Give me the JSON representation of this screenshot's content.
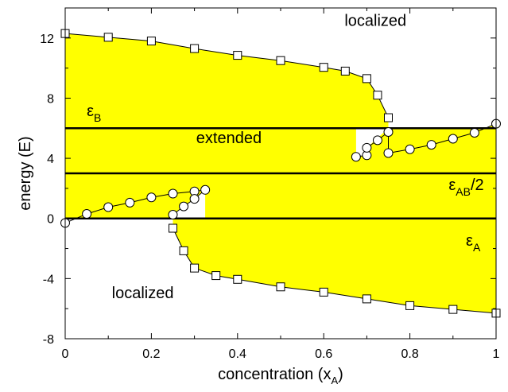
{
  "chart_data": {
    "type": "line",
    "xlabel": "concentration (x_A)",
    "ylabel": "energy (E)",
    "xlim": [
      0,
      1
    ],
    "ylim": [
      -8,
      14
    ],
    "xticks": [
      0,
      0.2,
      0.4,
      0.6,
      0.8,
      1
    ],
    "xtick_labels": [
      "0",
      "0.2",
      "0.4",
      "0.6",
      "0.8",
      "1"
    ],
    "yticks": [
      -8,
      -4,
      0,
      4,
      8,
      12
    ],
    "ytick_labels": [
      "-8",
      "-4",
      "0",
      "4",
      "8",
      "12"
    ],
    "grid": false,
    "fill_color": "#ffff00",
    "series": [
      {
        "marker": "square",
        "points": [
          [
            0,
            12.3
          ],
          [
            0.1,
            12.05
          ],
          [
            0.2,
            11.8
          ],
          [
            0.3,
            11.3
          ],
          [
            0.4,
            10.85
          ],
          [
            0.5,
            10.5
          ],
          [
            0.6,
            10.05
          ],
          [
            0.65,
            9.8
          ],
          [
            0.7,
            9.3
          ],
          [
            0.725,
            8.2
          ],
          [
            0.75,
            6.7
          ]
        ]
      },
      {
        "marker": "circle",
        "points": [
          [
            0.675,
            4.1
          ],
          [
            0.7,
            4.2
          ],
          [
            0.7,
            4.7
          ],
          [
            0.725,
            5.2
          ],
          [
            0.75,
            5.75
          ],
          [
            0.75,
            4.35
          ],
          [
            0.8,
            4.6
          ],
          [
            0.85,
            4.9
          ],
          [
            0.9,
            5.3
          ],
          [
            0.95,
            5.7
          ],
          [
            1.0,
            6.3
          ]
        ]
      },
      {
        "marker": "circle",
        "points": [
          [
            0,
            -0.3
          ],
          [
            0.05,
            0.3
          ],
          [
            0.1,
            0.75
          ],
          [
            0.15,
            1.05
          ],
          [
            0.2,
            1.4
          ],
          [
            0.25,
            1.65
          ],
          [
            0.3,
            1.8
          ],
          [
            0.325,
            1.9
          ],
          [
            0.3,
            1.3
          ],
          [
            0.275,
            0.8
          ],
          [
            0.25,
            0.25
          ]
        ]
      },
      {
        "marker": "square",
        "points": [
          [
            0.25,
            -0.65
          ],
          [
            0.275,
            -2.15
          ],
          [
            0.3,
            -3.3
          ],
          [
            0.35,
            -3.8
          ],
          [
            0.4,
            -4.05
          ],
          [
            0.5,
            -4.55
          ],
          [
            0.6,
            -4.9
          ],
          [
            0.7,
            -5.35
          ],
          [
            0.8,
            -5.8
          ],
          [
            0.9,
            -6.05
          ],
          [
            1.0,
            -6.3
          ]
        ]
      }
    ],
    "hlines": [
      {
        "y": 6,
        "label": "ε",
        "sub": "B"
      },
      {
        "y": 3,
        "label": "ε",
        "sub": "AB",
        "suffix": "/2"
      },
      {
        "y": 0,
        "label": "ε",
        "sub": "A"
      }
    ],
    "annotations": [
      {
        "text": "localized",
        "x": 0.72,
        "y": 12.8
      },
      {
        "text": "extended",
        "x": 0.38,
        "y": 5.0
      },
      {
        "text": "localized",
        "x": 0.18,
        "y": -5.3
      }
    ]
  }
}
